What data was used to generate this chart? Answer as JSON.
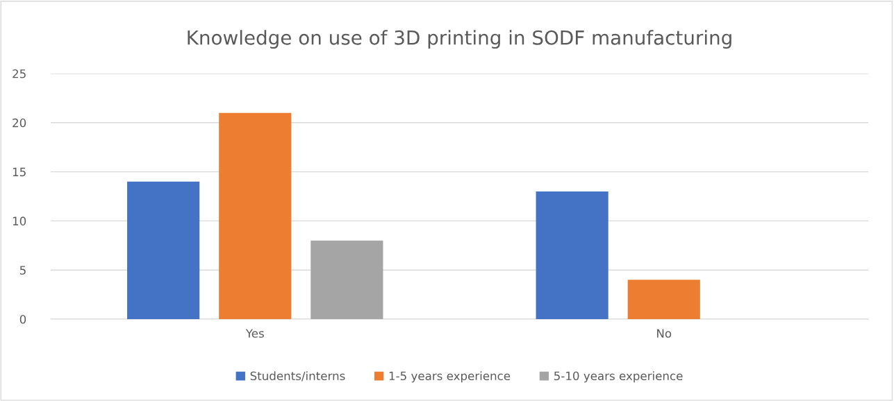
{
  "chart_data": {
    "type": "bar",
    "title": "Knowledge on use of 3D printing in SODF manufacturing",
    "categories": [
      "Yes",
      "No"
    ],
    "series": [
      {
        "name": "Students/interns",
        "color": "#4472c4",
        "values": [
          14,
          13
        ]
      },
      {
        "name": "1-5 years experience",
        "color": "#ed7d31",
        "values": [
          21,
          4
        ]
      },
      {
        "name": "5-10 years experience",
        "color": "#a5a5a5",
        "values": [
          8,
          null
        ]
      }
    ],
    "ylim": [
      0,
      25
    ],
    "yticks": [
      0,
      5,
      10,
      15,
      20,
      25
    ],
    "grid": "y",
    "legend": "bottom"
  }
}
